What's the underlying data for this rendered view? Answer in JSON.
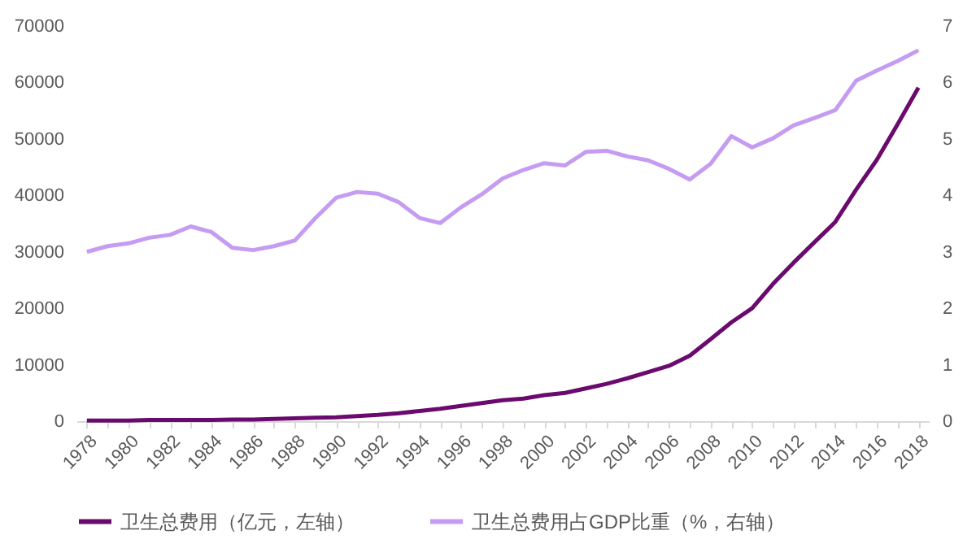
{
  "chart_data": {
    "type": "line",
    "categories": [
      "1978",
      null,
      "1980",
      null,
      "1982",
      null,
      "1984",
      null,
      "1986",
      null,
      "1988",
      null,
      "1990",
      null,
      "1992",
      null,
      "1994",
      null,
      "1996",
      null,
      "1998",
      null,
      "2000",
      null,
      "2002",
      null,
      "2004",
      null,
      "2006",
      null,
      "2008",
      null,
      "2010",
      null,
      "2012",
      null,
      "2014",
      null,
      "2016",
      null,
      "2018"
    ],
    "series": [
      {
        "name": "卫生总费用（亿元，左轴）",
        "color": "#6b0a6e",
        "values": [
          100,
          100,
          100,
          200,
          200,
          200,
          200,
          300,
          300,
          400,
          500,
          600,
          700,
          900,
          1100,
          1400,
          1800,
          2200,
          2700,
          3200,
          3700,
          4000,
          4600,
          5000,
          5800,
          6600,
          7600,
          8700,
          9800,
          11600,
          14500,
          17500,
          20000,
          24300,
          28100,
          31700,
          35300,
          41000,
          46300,
          52600,
          59100
        ]
      },
      {
        "name": "卫生总费用占GDP比重（%，右轴）",
        "color": "#c59cf2",
        "axis": "y2",
        "values": [
          3.0,
          3.1,
          3.15,
          3.25,
          3.3,
          3.45,
          3.35,
          3.07,
          3.03,
          3.1,
          3.2,
          3.6,
          3.96,
          4.06,
          4.03,
          3.88,
          3.6,
          3.51,
          3.79,
          4.02,
          4.3,
          4.45,
          4.57,
          4.53,
          4.77,
          4.79,
          4.69,
          4.62,
          4.47,
          4.28,
          4.56,
          5.05,
          4.85,
          5.01,
          5.24,
          5.37,
          5.51,
          6.03,
          6.21,
          6.38,
          6.57
        ]
      }
    ],
    "ylim": [
      0,
      70000
    ],
    "yticks": [
      0,
      10000,
      20000,
      30000,
      40000,
      50000,
      60000,
      70000
    ],
    "y2lim": [
      0,
      7
    ],
    "y2ticks": [
      0,
      1,
      2,
      3,
      4,
      5,
      6,
      7
    ],
    "grid": false,
    "legend": "bottom"
  }
}
